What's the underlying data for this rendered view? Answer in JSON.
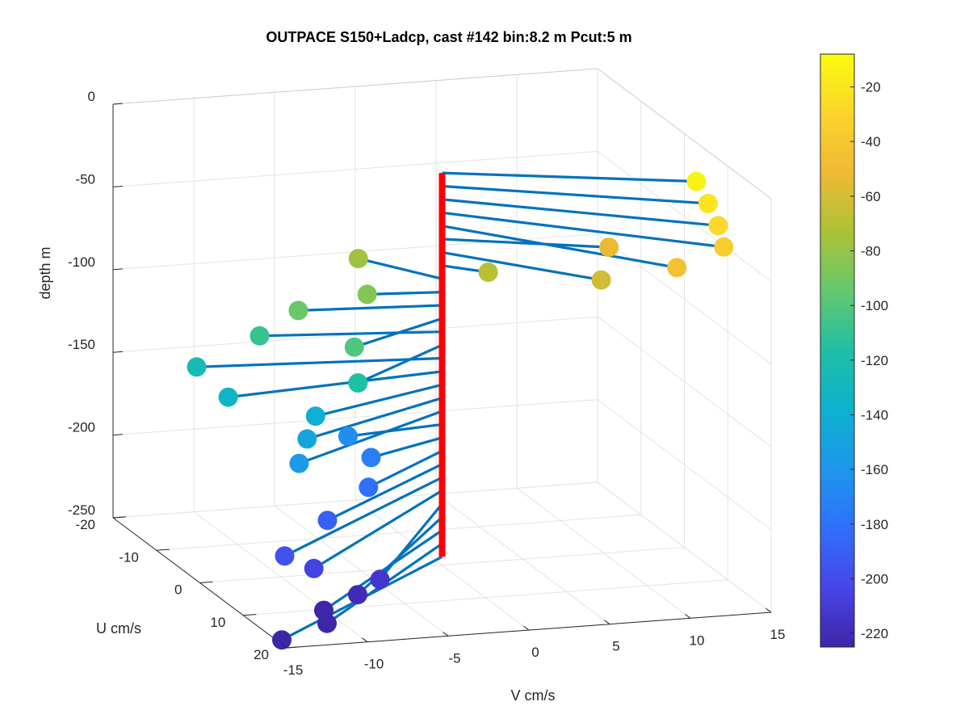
{
  "chart_data": {
    "type": "scatter3d",
    "title": "OUTPACE S150+Ladcp, cast #142 bin:8.2 m  Pcut:5 m",
    "xlabel": "V cm/s",
    "ylabel": "U cm/s",
    "zlabel": "depth m",
    "xlim": [
      -15,
      15
    ],
    "ylim": [
      -20,
      20
    ],
    "zlim": [
      -250,
      0
    ],
    "xticks": [
      "-15",
      "-10",
      "-5",
      "0",
      "5",
      "10",
      "15"
    ],
    "yticks": [
      "-20",
      "-10",
      "0",
      "10",
      "20"
    ],
    "zticks": [
      "0",
      "-50",
      "-100",
      "-150",
      "-200",
      "-250"
    ],
    "colorbar": {
      "colormap": "parula",
      "limits": [
        -225,
        -8
      ],
      "ticks": [
        "-20",
        "-40",
        "-60",
        "-80",
        "-100",
        "-120",
        "-140",
        "-160",
        "-180",
        "-200",
        "-220"
      ]
    },
    "grid": true,
    "profile_line_color": "#ff0000",
    "vector_color": "#0072bd",
    "points": [
      {
        "depth": -13,
        "V": 13.7,
        "U": 7.6
      },
      {
        "depth": -21,
        "V": 13.7,
        "U": 10.3
      },
      {
        "depth": -29,
        "V": 13.6,
        "U": 13.0
      },
      {
        "depth": -37,
        "V": 13.3,
        "U": 15.4
      },
      {
        "depth": -45,
        "V": 10.1,
        "U": 16.5
      },
      {
        "depth": -53,
        "V": 8.8,
        "U": 5.7
      },
      {
        "depth": -61,
        "V": 6.9,
        "U": 11.0
      },
      {
        "depth": -69,
        "V": 2.1,
        "U": 2.8
      },
      {
        "depth": -77,
        "V": -3.2,
        "U": -7.4
      },
      {
        "depth": -85,
        "V": -4.4,
        "U": -0.9
      },
      {
        "depth": -93,
        "V": -8.5,
        "U": -1.5
      },
      {
        "depth": -101,
        "V": -7.1,
        "U": 6.2
      },
      {
        "depth": -109,
        "V": -10.6,
        "U": -2.6
      },
      {
        "depth": -117,
        "V": -7.6,
        "U": 8.9
      },
      {
        "depth": -125,
        "V": -14.5,
        "U": -2.6
      },
      {
        "depth": -133,
        "V": -14.0,
        "U": 2.8
      },
      {
        "depth": -141,
        "V": -9.5,
        "U": 6.2
      },
      {
        "depth": -149,
        "V": -10.7,
        "U": 8.7
      },
      {
        "depth": -157,
        "V": -12.0,
        "U": 11.7
      },
      {
        "depth": -165,
        "V": -6.2,
        "U": 1.4
      },
      {
        "depth": -173,
        "V": -5.5,
        "U": 4.1
      },
      {
        "depth": -181,
        "V": -6.9,
        "U": 8.7
      },
      {
        "depth": -189,
        "V": -10.7,
        "U": 13.4
      },
      {
        "depth": -197,
        "V": -14.8,
        "U": 18.8
      },
      {
        "depth": -205,
        "V": -13.1,
        "U": 19.2
      },
      {
        "depth": -213,
        "V": -9.2,
        "U": 19.9
      },
      {
        "depth": -221,
        "V": -10.6,
        "U": 20.0
      },
      {
        "depth": -229,
        "V": -12.7,
        "U": 20.0
      },
      {
        "depth": -237,
        "V": -12.5,
        "U": 20.0
      },
      {
        "depth": -245,
        "V": -15.3,
        "U": 20.0
      }
    ]
  }
}
